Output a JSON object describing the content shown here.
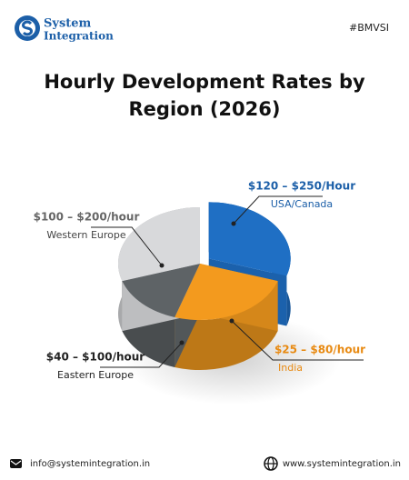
{
  "header": {
    "logo_line1": "System",
    "logo_line2": "Integration",
    "tag": "#BMVSI"
  },
  "chart_data": {
    "type": "pie",
    "title": "Hourly Development Rates by Region (2026)",
    "categories": [
      "USA/Canada",
      "India",
      "Eastern Europe",
      "Western Europe"
    ],
    "rates": [
      "$120 – $250/Hour",
      "$25 – $80/hour",
      "$40 – $100/hour",
      "$100 – $200/hour"
    ],
    "values": [
      30,
      25,
      15,
      30
    ],
    "colors": [
      "#1f6fc4",
      "#f39a1e",
      "#5e6366",
      "#d8d9db"
    ]
  },
  "footer": {
    "email": "info@systemintegration.in",
    "website": "www.systemintegration.in"
  }
}
